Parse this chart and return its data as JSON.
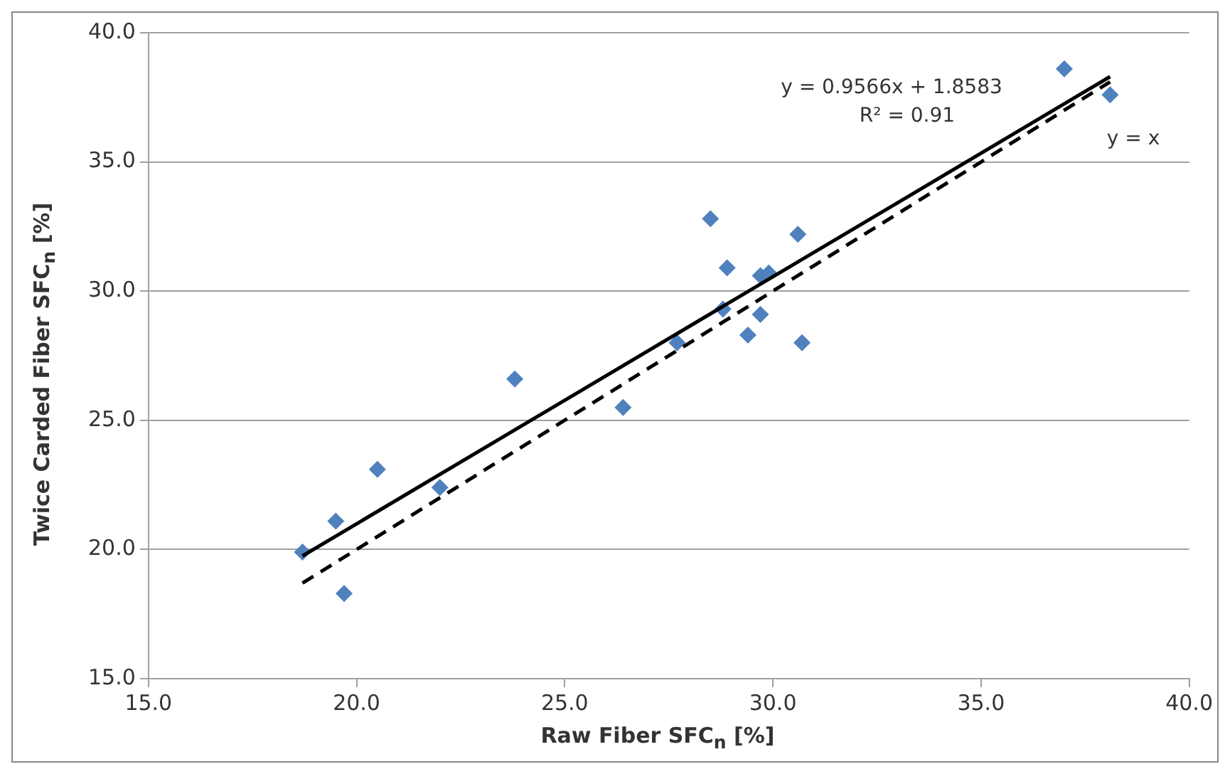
{
  "chart_data": {
    "type": "scatter",
    "xlabel": "Raw Fiber SFC$_{n}$ [%]",
    "ylabel": "Twice Carded Fiber SFC$_{n}$ [%]",
    "xlim": [
      15,
      40
    ],
    "xticks": [
      {
        "value": 15,
        "label": "15.0"
      },
      {
        "value": 20,
        "label": "20.0"
      },
      {
        "value": 25,
        "label": "25.0"
      },
      {
        "value": 30,
        "label": "30.0"
      },
      {
        "value": 35,
        "label": "35.0"
      },
      {
        "value": 40,
        "label": "40.0"
      }
    ],
    "ylim": [
      15,
      40
    ],
    "yticks": [
      {
        "value": 15,
        "label": "15.0"
      },
      {
        "value": 20,
        "label": "20.0"
      },
      {
        "value": 25,
        "label": "25.0"
      },
      {
        "value": 30,
        "label": "30.0"
      },
      {
        "value": 35,
        "label": "35.0"
      },
      {
        "value": 40,
        "label": "40.0"
      }
    ],
    "grid": "y",
    "legend": false,
    "series": [
      {
        "type": "scatter",
        "marker": "diamond",
        "color": "#4f81bd",
        "x": [
          18.7,
          19.5,
          19.7,
          20.5,
          22.0,
          23.8,
          26.4,
          27.7,
          28.5,
          28.9,
          28.8,
          29.4,
          29.7,
          29.7,
          29.9,
          30.6,
          30.7,
          37.0,
          38.1
        ],
        "values": [
          19.9,
          21.1,
          18.3,
          23.1,
          22.4,
          26.6,
          25.5,
          28.0,
          32.8,
          30.9,
          29.3,
          28.3,
          29.1,
          30.6,
          30.7,
          32.2,
          28.0,
          38.6,
          37.6
        ]
      },
      {
        "type": "line",
        "marker": "none",
        "line_style": "solid",
        "color": "#000000",
        "x": [
          18.7,
          38.1
        ],
        "values": [
          19.75,
          38.3
        ]
      },
      {
        "type": "line",
        "marker": "none",
        "line_style": "dashed",
        "color": "#000000",
        "x": [
          18.7,
          38.1
        ],
        "values": [
          18.7,
          38.1
        ]
      }
    ],
    "annotations": [
      "y = 0.9566x + 1.8583",
      "R² = 0.91",
      "y = x"
    ]
  }
}
